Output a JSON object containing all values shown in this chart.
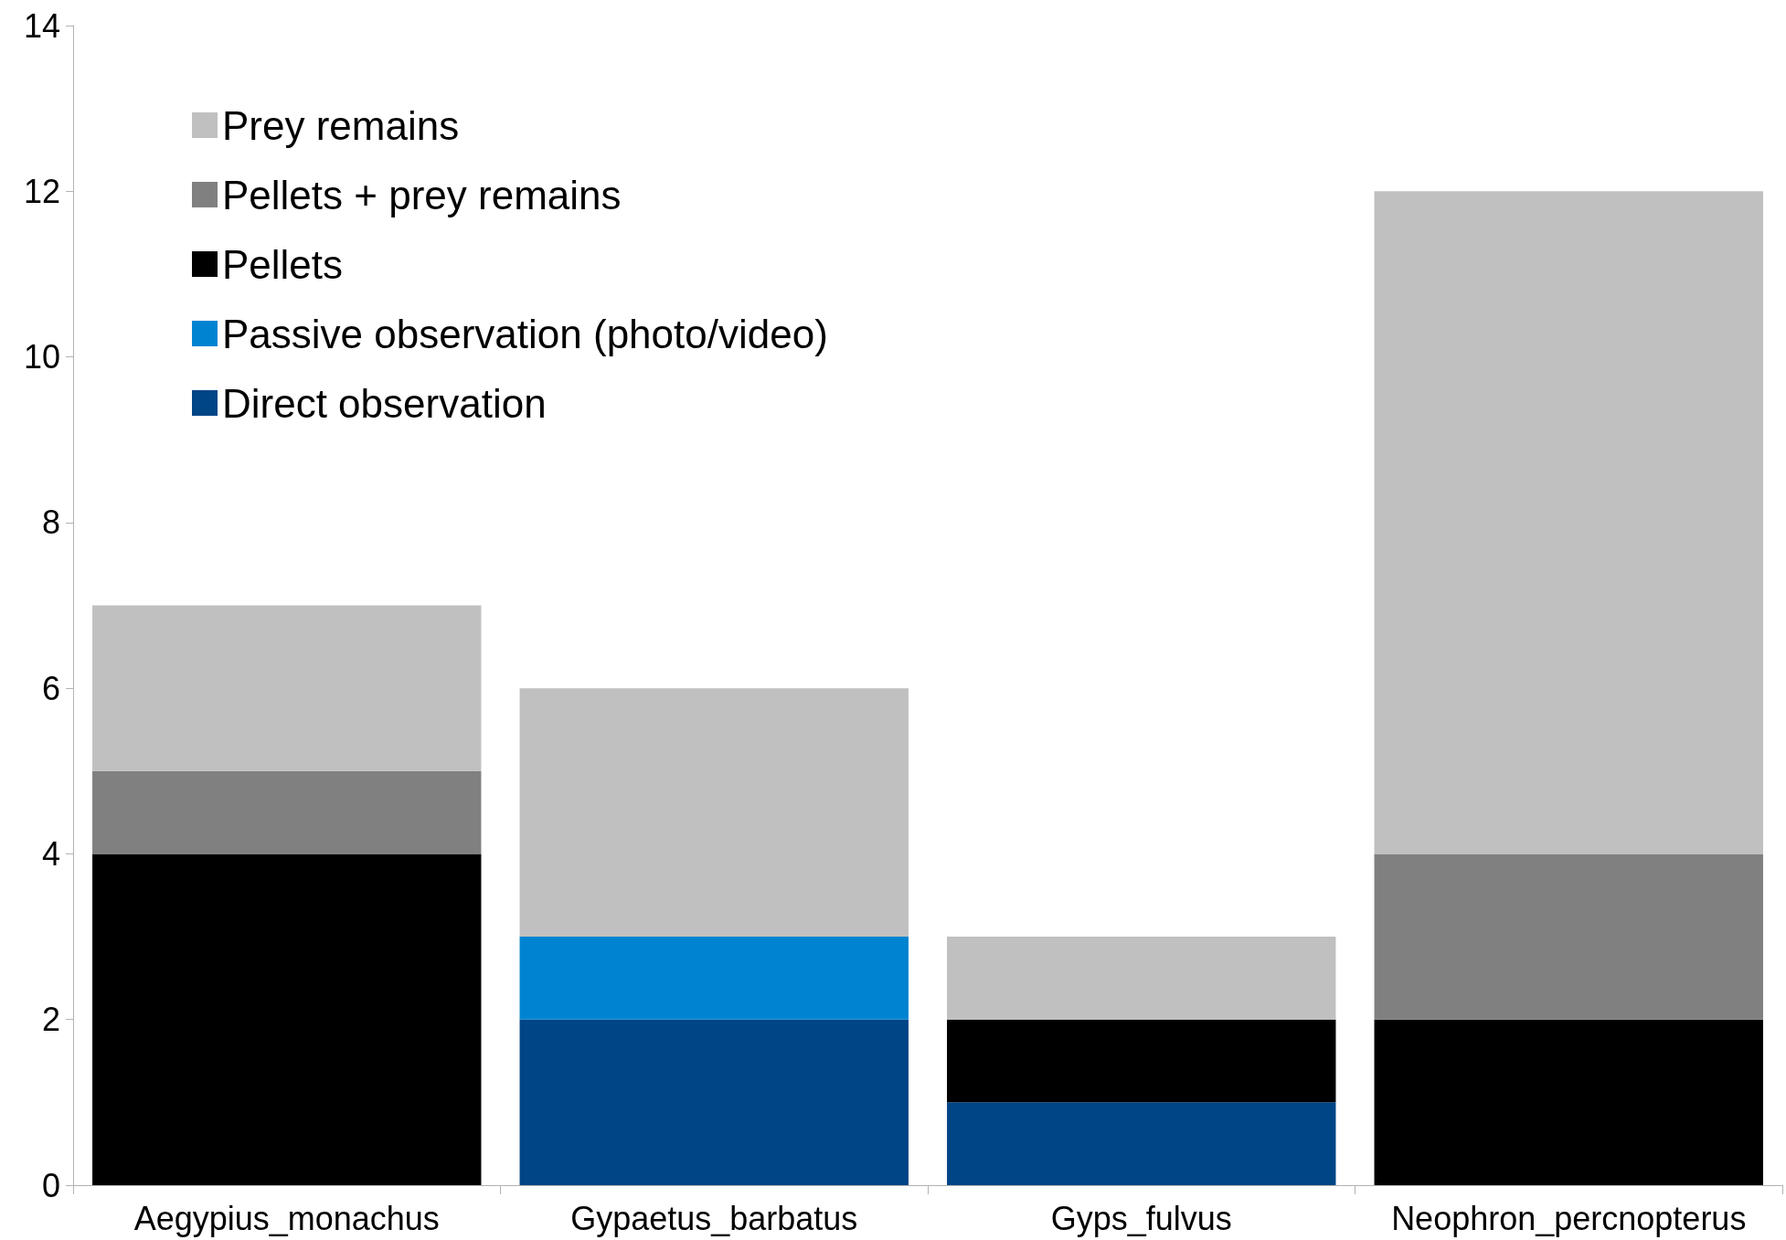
{
  "chart_data": {
    "type": "bar",
    "stacked": true,
    "categories": [
      "Aegypius_monachus",
      "Gypaetus_barbatus",
      "Gyps_fulvus",
      "Neophron_percnopterus"
    ],
    "series": [
      {
        "name": "Direct observation",
        "color": "#004586",
        "values": [
          0,
          2,
          1,
          0
        ]
      },
      {
        "name": "Passive observation (photo/video)",
        "color": "#0084d1",
        "values": [
          0,
          1,
          0,
          0
        ]
      },
      {
        "name": "Pellets",
        "color": "#000000",
        "values": [
          4,
          0,
          1,
          2
        ]
      },
      {
        "name": "Pellets + prey remains",
        "color": "#808080",
        "values": [
          1,
          0,
          0,
          2
        ]
      },
      {
        "name": "Prey remains",
        "color": "#c0c0c0",
        "values": [
          2,
          3,
          1,
          8
        ]
      }
    ],
    "ylim": [
      0,
      14
    ],
    "yticks": [
      0,
      2,
      4,
      6,
      8,
      10,
      12,
      14
    ],
    "grid": false,
    "legend": "top left"
  }
}
